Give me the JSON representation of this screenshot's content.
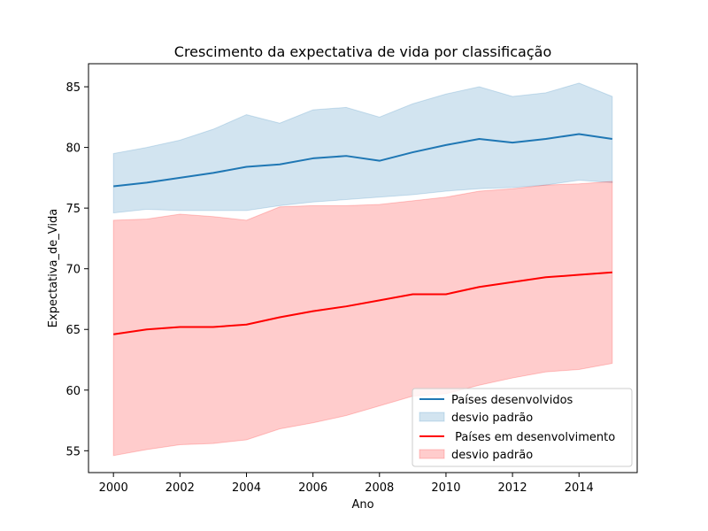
{
  "chart_data": {
    "type": "line",
    "title": "Crescimento da expectativa de vida por classificação",
    "xlabel": "Ano",
    "ylabel": "Expectativa_de_Vida",
    "xlim": [
      1999.25,
      2015.75
    ],
    "ylim": [
      53.2,
      86.9
    ],
    "xticks": [
      2000,
      2002,
      2004,
      2006,
      2008,
      2010,
      2012,
      2014
    ],
    "yticks": [
      55,
      60,
      65,
      70,
      75,
      80,
      85
    ],
    "grid": false,
    "legend_position": "lower-right",
    "x": [
      2000,
      2001,
      2002,
      2003,
      2004,
      2005,
      2006,
      2007,
      2008,
      2009,
      2010,
      2011,
      2012,
      2013,
      2014,
      2015
    ],
    "series": [
      {
        "name": "Países desenvolvidos",
        "band_name": "desvio padrão",
        "color": "#1f77b4",
        "band_color": "#1f77b4",
        "values": [
          76.8,
          77.1,
          77.5,
          77.9,
          78.4,
          78.6,
          79.1,
          79.3,
          78.9,
          79.6,
          80.2,
          80.7,
          80.4,
          80.7,
          81.1,
          80.7
        ],
        "upper": [
          79.5,
          80.0,
          80.6,
          81.5,
          82.7,
          82.0,
          83.1,
          83.3,
          82.5,
          83.6,
          84.4,
          85.0,
          84.2,
          84.5,
          85.3,
          84.2
        ],
        "lower": [
          74.6,
          74.9,
          74.8,
          74.8,
          74.8,
          75.2,
          75.5,
          75.7,
          75.9,
          76.1,
          76.4,
          76.6,
          76.7,
          76.9,
          77.3,
          77.1
        ]
      },
      {
        "name": " Países em desenvolvimento",
        "band_name": "desvio padrão",
        "color": "#ff0000",
        "band_color": "#ff0000",
        "values": [
          64.6,
          65.0,
          65.2,
          65.2,
          65.4,
          66.0,
          66.5,
          66.9,
          67.4,
          67.9,
          67.9,
          68.5,
          68.9,
          69.3,
          69.5,
          69.7
        ],
        "upper": [
          74.0,
          74.1,
          74.5,
          74.3,
          74.0,
          75.1,
          75.2,
          75.2,
          75.3,
          75.6,
          75.9,
          76.4,
          76.6,
          76.9,
          77.0,
          77.2
        ],
        "lower": [
          54.6,
          55.1,
          55.5,
          55.6,
          55.9,
          56.8,
          57.3,
          57.9,
          58.7,
          59.5,
          59.7,
          60.4,
          61.0,
          61.5,
          61.7,
          62.2
        ]
      }
    ]
  }
}
